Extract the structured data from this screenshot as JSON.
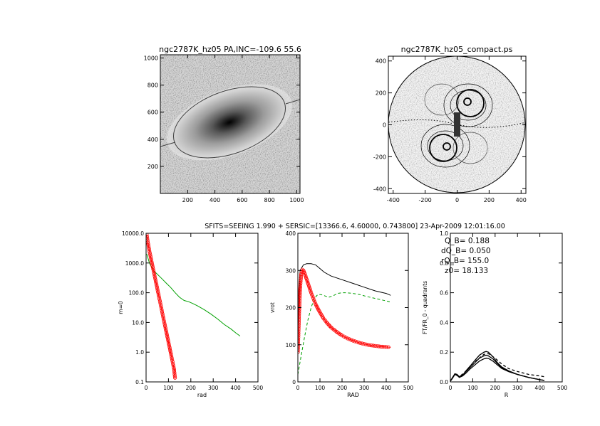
{
  "image_panel": {
    "title": "ngc2787K_hz05 PA,INC=-109.6 55.6",
    "x_ticks": [
      "200",
      "400",
      "600",
      "800",
      "1000"
    ],
    "y_ticks": [
      "200",
      "400",
      "600",
      "800",
      "1000"
    ]
  },
  "compact_panel": {
    "title": "ngc2787K_hz05_compact.ps",
    "x_ticks": [
      "-400",
      "-200",
      "0",
      "200",
      "400"
    ],
    "y_ticks": [
      "-400",
      "-200",
      "0",
      "200",
      "400"
    ]
  },
  "header": {
    "text": "SFITS=SEEING 1.990 + SERSIC=[13366.6, 4.60000, 0.743800]  23-Apr-2009 12:01:16.00"
  },
  "annotations": {
    "q_b": "Q_B=  0.188",
    "dq_b": "dQ_B=  0.050",
    "rq_b": "rQ_B=  155.0",
    "z0": "z0= 18.133"
  },
  "colors": {
    "green": "#00a000",
    "red": "#ff0000",
    "black": "#000000",
    "gray": "#808080"
  },
  "chart_data": [
    {
      "type": "line",
      "xlabel": "rad",
      "ylabel": "m=0",
      "xlim": [
        0,
        500
      ],
      "ylim": [
        0.1,
        10000.0
      ],
      "log_y": true,
      "x_ticks": [
        "0",
        "100",
        "200",
        "300",
        "400",
        "500"
      ],
      "y_ticks": [
        "0.1",
        "1.0",
        "10.0",
        "100.0",
        "1000.0",
        "10000.0"
      ],
      "series": [
        {
          "color": "green",
          "x": [
            3,
            8,
            15,
            25,
            35,
            50,
            70,
            90,
            110,
            130,
            150,
            170,
            190,
            210,
            230,
            260,
            290,
            320,
            350,
            380,
            400,
            420
          ],
          "y": [
            2000,
            1500,
            1000,
            700,
            540,
            420,
            300,
            210,
            150,
            100,
            70,
            55,
            50,
            43,
            36,
            27,
            19,
            13,
            8.5,
            6,
            4.5,
            3.5
          ]
        },
        {
          "color": "red",
          "marker": "circle",
          "x": [
            3,
            8,
            15,
            25,
            35,
            45,
            55,
            65,
            75,
            85,
            95,
            105,
            115,
            125,
            130
          ],
          "y": [
            9000,
            5000,
            2500,
            1100,
            480,
            210,
            92,
            40,
            17,
            7.5,
            3.3,
            1.45,
            0.63,
            0.27,
            0.12
          ]
        }
      ]
    },
    {
      "type": "line",
      "xlabel": "RAD",
      "ylabel": "vrot",
      "xlim": [
        0,
        500
      ],
      "ylim": [
        0,
        400
      ],
      "x_ticks": [
        "0",
        "100",
        "200",
        "300",
        "400",
        "500"
      ],
      "y_ticks": [
        "0",
        "100",
        "200",
        "300",
        "400"
      ],
      "series": [
        {
          "color": "black",
          "x": [
            0,
            10,
            25,
            40,
            60,
            80,
            100,
            120,
            150,
            200,
            250,
            300,
            350,
            400,
            420
          ],
          "y": [
            150,
            300,
            315,
            318,
            318,
            315,
            305,
            295,
            285,
            275,
            265,
            255,
            245,
            238,
            233
          ]
        },
        {
          "color": "green",
          "dashed": true,
          "x": [
            0,
            15,
            30,
            45,
            60,
            75,
            90,
            105,
            120,
            140,
            160,
            180,
            200,
            220,
            250,
            280,
            310,
            340,
            370,
            400,
            420
          ],
          "y": [
            20,
            70,
            120,
            165,
            200,
            225,
            235,
            235,
            232,
            228,
            232,
            238,
            240,
            240,
            238,
            235,
            230,
            226,
            222,
            218,
            215
          ]
        },
        {
          "color": "red",
          "marker": "circle",
          "x": [
            0,
            5,
            10,
            15,
            20,
            25,
            30,
            40,
            50,
            60,
            70,
            80,
            90,
            100,
            115,
            130,
            150,
            175,
            200,
            225,
            250,
            275,
            300,
            325,
            350,
            375,
            400,
            420
          ],
          "y": [
            80,
            170,
            250,
            290,
            302,
            300,
            293,
            276,
            258,
            240,
            225,
            210,
            198,
            187,
            172,
            160,
            147,
            135,
            125,
            117,
            111,
            106,
            102,
            99,
            97,
            95,
            94,
            93
          ]
        }
      ]
    },
    {
      "type": "line",
      "xlabel": "R",
      "ylabel": "FT/FR_0 - quadrants",
      "xlim": [
        0,
        500
      ],
      "ylim": [
        0,
        1.0
      ],
      "x_ticks": [
        "0",
        "100",
        "200",
        "300",
        "400",
        "500"
      ],
      "y_ticks": [
        "0.0",
        "0.2",
        "0.4",
        "0.6",
        "0.8",
        "1.0"
      ],
      "series": [
        {
          "color": "black",
          "x": [
            0,
            10,
            20,
            30,
            40,
            55,
            70,
            90,
            110,
            130,
            150,
            160,
            170,
            190,
            210,
            230,
            260,
            300,
            350,
            400,
            420
          ],
          "y": [
            0.005,
            0.03,
            0.055,
            0.05,
            0.035,
            0.045,
            0.075,
            0.11,
            0.145,
            0.18,
            0.2,
            0.205,
            0.2,
            0.17,
            0.13,
            0.1,
            0.075,
            0.05,
            0.03,
            0.015,
            0.01
          ]
        },
        {
          "color": "black",
          "x": [
            0,
            10,
            20,
            30,
            40,
            55,
            70,
            90,
            110,
            130,
            150,
            160,
            170,
            190,
            210,
            230,
            260,
            300,
            350,
            400,
            420
          ],
          "y": [
            0.005,
            0.03,
            0.05,
            0.045,
            0.035,
            0.045,
            0.07,
            0.1,
            0.13,
            0.16,
            0.175,
            0.18,
            0.175,
            0.155,
            0.125,
            0.095,
            0.07,
            0.05,
            0.03,
            0.015,
            0.01
          ]
        },
        {
          "color": "black",
          "x": [
            0,
            10,
            20,
            30,
            40,
            55,
            70,
            90,
            110,
            130,
            150,
            160,
            170,
            190,
            210,
            230,
            260,
            300,
            350,
            400,
            420
          ],
          "y": [
            0.005,
            0.025,
            0.05,
            0.045,
            0.03,
            0.04,
            0.06,
            0.09,
            0.115,
            0.14,
            0.155,
            0.16,
            0.158,
            0.14,
            0.115,
            0.09,
            0.07,
            0.05,
            0.03,
            0.015,
            0.01
          ]
        },
        {
          "color": "black",
          "dashed": true,
          "x": [
            0,
            20,
            40,
            60,
            90,
            120,
            150,
            170,
            200,
            230,
            260,
            300,
            350,
            400,
            420
          ],
          "y": [
            0.005,
            0.05,
            0.035,
            0.06,
            0.1,
            0.15,
            0.185,
            0.19,
            0.16,
            0.12,
            0.09,
            0.07,
            0.05,
            0.04,
            0.035
          ]
        }
      ]
    }
  ]
}
